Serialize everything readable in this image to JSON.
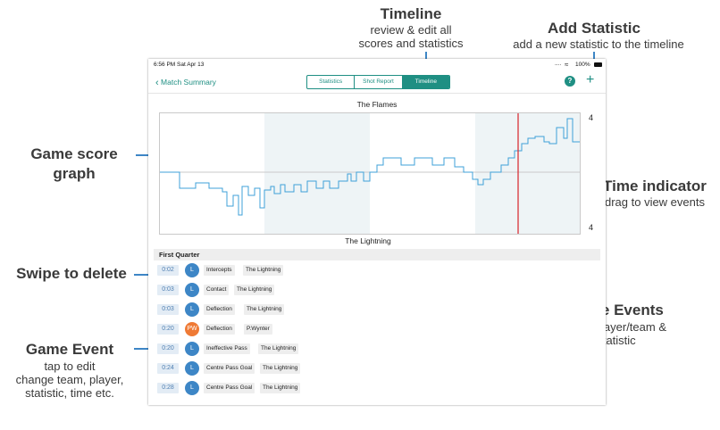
{
  "annotations": {
    "timeline_title": "Timeline",
    "timeline_sub1": "review & edit all",
    "timeline_sub2": "scores and statistics",
    "add_title": "Add Statistic",
    "add_sub": "add a new statistic to the timeline",
    "graph_title1": "Game score",
    "graph_title2": "graph",
    "time_title": "Time indicator",
    "time_sub": "drag to view events",
    "swipe_title": "Swipe to delete",
    "events_title": "Game Events",
    "events_sub1": "time, player/team &",
    "events_sub2": "statistic",
    "event_title": "Game Event",
    "event_sub1": "tap to edit",
    "event_sub2": "change team, player,",
    "event_sub3": "statistic, time etc."
  },
  "status_bar": {
    "time_date": "6:56 PM  Sat Apr 13",
    "signal": "....",
    "battery": "100%"
  },
  "nav": {
    "back_label": "Match Summary",
    "tabs": [
      "Statistics",
      "Shot Report",
      "Timeline"
    ],
    "active_tab": "Timeline",
    "help_label": "?",
    "add_label": "+"
  },
  "timeline": {
    "top_team": "The Flames",
    "bottom_team": "The Lightning",
    "top_score": "4",
    "bottom_score": "4",
    "line_color": "#3fa1d8",
    "indicator_color": "#d8232a"
  },
  "events": {
    "section": "First Quarter",
    "rows": [
      {
        "time": "0:02",
        "avatar": "L",
        "avatar_color": "#3d86c6",
        "stat": "Intercepts",
        "who": "The Lightning"
      },
      {
        "time": "0:03",
        "avatar": "L",
        "avatar_color": "#3d86c6",
        "stat": "Contact",
        "who": "The Lightning"
      },
      {
        "time": "0:03",
        "avatar": "L",
        "avatar_color": "#3d86c6",
        "stat": "Deflection",
        "who": "The Lightning"
      },
      {
        "time": "0:20",
        "avatar": "PW",
        "avatar_color": "#ef7a35",
        "stat": "Deflection",
        "who": "P.Wynter"
      },
      {
        "time": "0:20",
        "avatar": "L",
        "avatar_color": "#3d86c6",
        "stat": "Ineffective Pass",
        "who": "The Lightning"
      },
      {
        "time": "0:24",
        "avatar": "L",
        "avatar_color": "#3d86c6",
        "stat": "Centre Pass Goal",
        "who": "The Lightning"
      },
      {
        "time": "0:28",
        "avatar": "L",
        "avatar_color": "#3d86c6",
        "stat": "Centre Pass Goal",
        "who": "The Lightning"
      }
    ]
  }
}
